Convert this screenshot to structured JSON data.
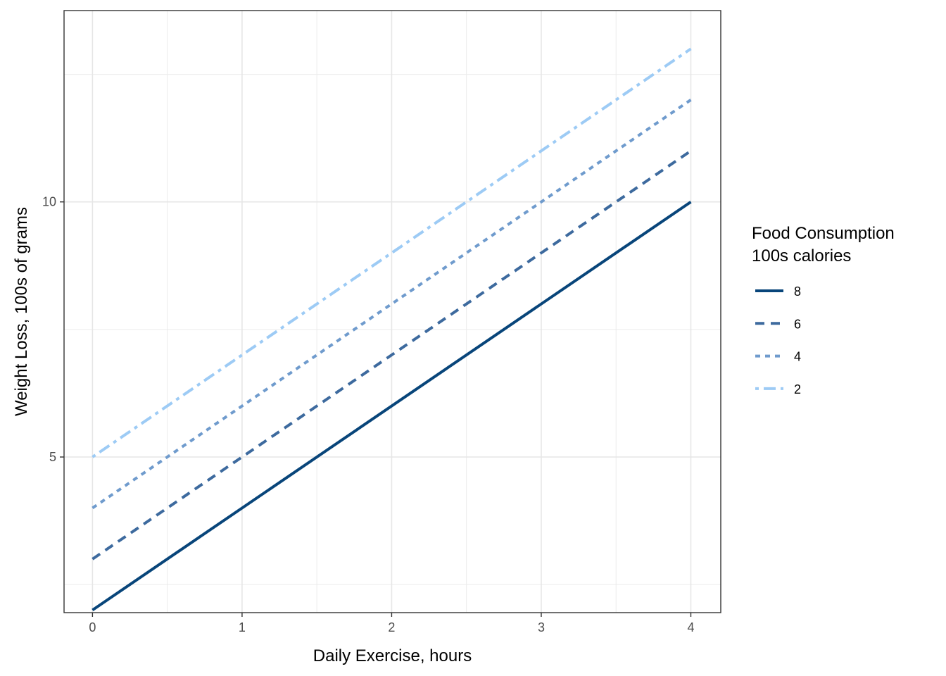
{
  "chart_data": {
    "type": "line",
    "xlabel": "Daily Exercise, hours",
    "ylabel": "Weight Loss, 100s of grams",
    "xlim": [
      -0.19,
      4.2
    ],
    "ylim": [
      1.95,
      13.75
    ],
    "x_ticks": [
      0,
      1,
      2,
      3,
      4
    ],
    "x_tick_labels": [
      "0",
      "1",
      "2",
      "3",
      "4"
    ],
    "x_minor_ticks": [
      0.5,
      1.5,
      2.5,
      3.5
    ],
    "y_ticks": [
      5,
      10
    ],
    "y_tick_labels": [
      "5",
      "10"
    ],
    "y_minor_ticks": [
      2.5,
      7.5,
      12.5
    ],
    "grid": true,
    "legend": {
      "title_line1": "Food Consumption",
      "title_line2": "100s calories",
      "placement": "right"
    },
    "series": [
      {
        "name": "8",
        "x": [
          0,
          4
        ],
        "values": [
          2,
          10
        ],
        "color": "#08457a",
        "dash": "solid"
      },
      {
        "name": "6",
        "x": [
          0,
          4
        ],
        "values": [
          3,
          11
        ],
        "color": "#3d6a9e",
        "dash": "dashed"
      },
      {
        "name": "4",
        "x": [
          0,
          4
        ],
        "values": [
          4,
          12
        ],
        "color": "#6f9bcd",
        "dash": "dotted"
      },
      {
        "name": "2",
        "x": [
          0,
          4
        ],
        "values": [
          5,
          13
        ],
        "color": "#9dcbf5",
        "dash": "dotdash"
      }
    ]
  }
}
